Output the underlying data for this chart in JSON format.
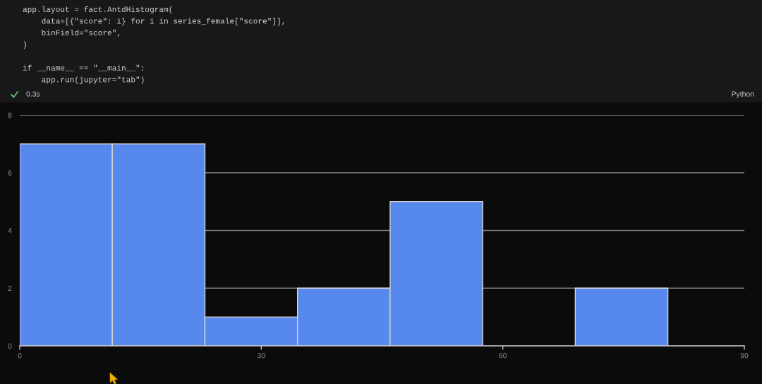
{
  "chart_data": {
    "type": "histogram",
    "bins": [
      0,
      11.5,
      23,
      34.5,
      46,
      57.5,
      69,
      80.5
    ],
    "values": [
      7,
      7,
      1,
      2,
      5,
      0,
      2
    ],
    "color": "#5688ed",
    "xlim": [
      0,
      90
    ],
    "xticks": [
      0,
      30,
      60,
      90
    ],
    "ylim": [
      0,
      8
    ],
    "yticks": [
      0,
      2,
      4,
      6,
      8
    ],
    "grid": "y",
    "annotations": [
      "app.layout = fact.AntdHistogram(\n    data=[{\"score\": i} for i in series_female[\"score\"]],\n    binField=\"score\",\n)\n\nif __name__ == \"__main__\":\n    app.run(jupyter=\"tab\")",
      "0.3s",
      "Python"
    ]
  }
}
